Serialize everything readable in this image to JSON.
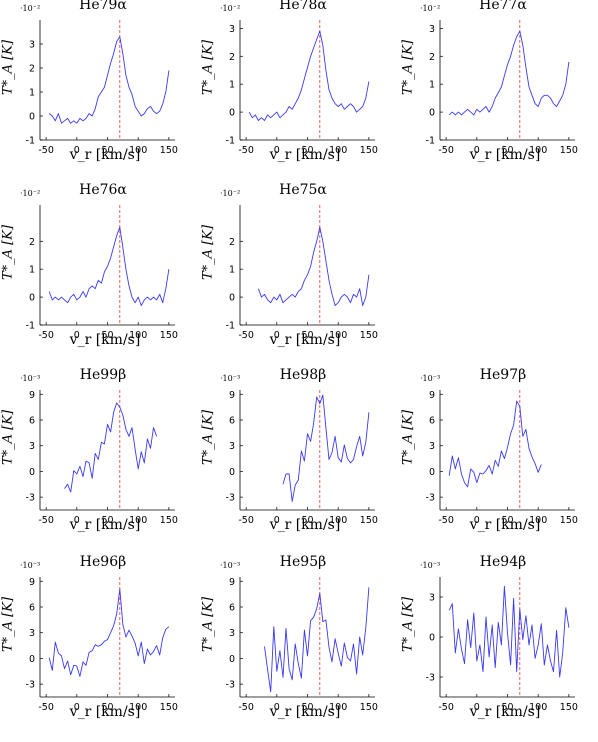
{
  "chart_data": [
    {
      "type": "line",
      "title": "He79α",
      "exponent": "·10⁻²",
      "xlabel": "v_r [km/s]",
      "ylabel": "T*_A [K]",
      "xlim": [
        -60,
        160
      ],
      "ylim": [
        -1,
        4
      ],
      "xticks": [
        -50,
        0,
        50,
        100,
        150
      ],
      "yticks": [
        -1,
        0,
        1,
        2,
        3
      ],
      "marker_x": 70,
      "x": [
        -45,
        -40,
        -35,
        -30,
        -25,
        -20,
        -15,
        -10,
        -5,
        0,
        5,
        10,
        15,
        20,
        25,
        30,
        35,
        40,
        45,
        50,
        55,
        60,
        65,
        70,
        75,
        80,
        85,
        90,
        95,
        100,
        105,
        110,
        115,
        120,
        125,
        130,
        135,
        140,
        145,
        150
      ],
      "y": [
        0.1,
        0.0,
        -0.2,
        0.1,
        -0.3,
        -0.2,
        -0.1,
        -0.3,
        -0.2,
        -0.3,
        -0.1,
        -0.2,
        -0.1,
        0.1,
        0.0,
        0.3,
        0.8,
        1.0,
        1.2,
        1.7,
        2.2,
        2.6,
        3.1,
        3.3,
        2.6,
        1.7,
        1.2,
        0.9,
        0.4,
        0.2,
        0.0,
        0.1,
        0.3,
        0.4,
        0.2,
        0.1,
        0.2,
        0.5,
        1.0,
        1.9
      ]
    },
    {
      "type": "line",
      "title": "He78α",
      "exponent": "·10⁻²",
      "xlabel": "v_r [km/s]",
      "ylabel": "T*_A [K]",
      "xlim": [
        -60,
        160
      ],
      "ylim": [
        -1,
        3.3
      ],
      "xticks": [
        -50,
        0,
        50,
        100,
        150
      ],
      "yticks": [
        -1,
        0,
        1,
        2,
        3
      ],
      "marker_x": 70,
      "x": [
        -45,
        -40,
        -35,
        -30,
        -25,
        -20,
        -15,
        -10,
        -5,
        0,
        5,
        10,
        15,
        20,
        25,
        30,
        35,
        40,
        45,
        50,
        55,
        60,
        65,
        70,
        75,
        80,
        85,
        90,
        95,
        100,
        105,
        110,
        115,
        120,
        125,
        130,
        135,
        140,
        145,
        150
      ],
      "y": [
        0.0,
        -0.2,
        -0.1,
        -0.3,
        -0.2,
        -0.3,
        -0.1,
        -0.2,
        -0.1,
        0.0,
        -0.2,
        -0.1,
        0.0,
        0.2,
        0.1,
        0.3,
        0.5,
        0.8,
        1.2,
        1.6,
        2.0,
        2.3,
        2.6,
        2.9,
        2.4,
        1.5,
        0.8,
        0.5,
        0.3,
        0.2,
        0.3,
        0.1,
        0.2,
        0.3,
        0.2,
        0.0,
        0.1,
        0.2,
        0.5,
        1.1
      ]
    },
    {
      "type": "line",
      "title": "He77α",
      "exponent": "·10⁻²",
      "xlabel": "v_r [km/s]",
      "ylabel": "T*_A [K]",
      "xlim": [
        -60,
        160
      ],
      "ylim": [
        -1,
        3.3
      ],
      "xticks": [
        -50,
        0,
        50,
        100,
        150
      ],
      "yticks": [
        -1,
        0,
        1,
        2,
        3
      ],
      "marker_x": 70,
      "x": [
        -45,
        -40,
        -35,
        -30,
        -25,
        -20,
        -15,
        -10,
        -5,
        0,
        5,
        10,
        15,
        20,
        25,
        30,
        35,
        40,
        45,
        50,
        55,
        60,
        65,
        70,
        75,
        80,
        85,
        90,
        95,
        100,
        105,
        110,
        115,
        120,
        125,
        130,
        135,
        140,
        145,
        150
      ],
      "y": [
        -0.1,
        0.0,
        -0.1,
        0.0,
        -0.1,
        0.0,
        0.1,
        0.0,
        -0.1,
        0.1,
        0.0,
        0.1,
        0.2,
        0.0,
        0.2,
        0.5,
        0.7,
        0.9,
        1.3,
        1.7,
        2.0,
        2.4,
        2.7,
        2.9,
        2.4,
        1.6,
        0.9,
        0.6,
        0.3,
        0.2,
        0.5,
        0.6,
        0.6,
        0.5,
        0.3,
        0.2,
        0.4,
        0.6,
        1.0,
        1.8
      ]
    },
    {
      "type": "line",
      "title": "He76α",
      "exponent": "·10⁻²",
      "xlabel": "v_r [km/s]",
      "ylabel": "T*_A [K]",
      "xlim": [
        -60,
        160
      ],
      "ylim": [
        -1,
        3.3
      ],
      "xticks": [
        -50,
        0,
        50,
        100,
        150
      ],
      "yticks": [
        -1,
        0,
        1,
        2
      ],
      "marker_x": 70,
      "x": [
        -45,
        -40,
        -35,
        -30,
        -25,
        -20,
        -15,
        -10,
        -5,
        0,
        5,
        10,
        15,
        20,
        25,
        30,
        35,
        40,
        45,
        50,
        55,
        60,
        65,
        70,
        75,
        80,
        85,
        90,
        95,
        100,
        105,
        110,
        115,
        120,
        125,
        130,
        135,
        140,
        145,
        150
      ],
      "y": [
        0.2,
        -0.1,
        0.0,
        -0.1,
        0.0,
        -0.1,
        -0.2,
        0.0,
        0.1,
        -0.1,
        0.0,
        0.2,
        0.0,
        0.3,
        0.4,
        0.3,
        0.6,
        0.5,
        0.9,
        1.1,
        1.4,
        1.8,
        2.2,
        2.5,
        1.8,
        1.0,
        0.4,
        0.0,
        -0.2,
        0.0,
        -0.3,
        -0.1,
        0.0,
        -0.1,
        0.0,
        -0.1,
        0.1,
        -0.2,
        0.3,
        1.0
      ]
    },
    {
      "type": "line",
      "title": "He75α",
      "exponent": "·10⁻²",
      "xlabel": "v_r [km/s]",
      "ylabel": "T*_A [K]",
      "xlim": [
        -60,
        160
      ],
      "ylim": [
        -1,
        3.3
      ],
      "xticks": [
        -50,
        0,
        50,
        100,
        150
      ],
      "yticks": [
        -1,
        0,
        1,
        2
      ],
      "marker_x": 70,
      "x": [
        -30,
        -25,
        -20,
        -15,
        -10,
        -5,
        0,
        5,
        10,
        15,
        20,
        25,
        30,
        35,
        40,
        45,
        50,
        55,
        60,
        65,
        70,
        75,
        80,
        85,
        90,
        95,
        100,
        105,
        110,
        115,
        120,
        125,
        130,
        135,
        140,
        145,
        150
      ],
      "y": [
        0.3,
        0.0,
        0.1,
        -0.1,
        -0.2,
        0.0,
        -0.1,
        0.1,
        -0.2,
        -0.1,
        0.0,
        0.1,
        0.0,
        0.2,
        0.3,
        0.6,
        0.8,
        1.1,
        1.6,
        2.0,
        2.5,
        2.0,
        1.3,
        0.6,
        0.1,
        -0.3,
        -0.2,
        0.0,
        0.1,
        0.0,
        -0.2,
        0.1,
        0.0,
        0.3,
        -0.3,
        0.0,
        0.8
      ]
    },
    {
      "type": "line",
      "title": "He99β",
      "exponent": "·10⁻³",
      "xlabel": "v_r [km/s]",
      "ylabel": "T*_A [K]",
      "xlim": [
        -60,
        160
      ],
      "ylim": [
        -4.5,
        9.5
      ],
      "xticks": [
        -50,
        0,
        50,
        100,
        150
      ],
      "yticks": [
        -3,
        0,
        3,
        6,
        9
      ],
      "marker_x": 70,
      "x": [
        -20,
        -15,
        -10,
        -5,
        0,
        5,
        10,
        15,
        20,
        25,
        30,
        35,
        40,
        45,
        50,
        55,
        60,
        65,
        70,
        75,
        80,
        85,
        90,
        95,
        100,
        105,
        110,
        115,
        120,
        125,
        130
      ],
      "y": [
        -2.0,
        -1.5,
        -2.4,
        0.1,
        -0.3,
        0.6,
        -0.6,
        1.2,
        1.0,
        -0.8,
        2.1,
        1.4,
        3.4,
        3.2,
        5.5,
        4.6,
        6.9,
        8.0,
        7.5,
        6.6,
        4.9,
        4.1,
        5.1,
        2.6,
        0.3,
        2.3,
        1.0,
        3.8,
        2.7,
        5.1,
        4.1
      ]
    },
    {
      "type": "line",
      "title": "He98β",
      "exponent": "·10⁻³",
      "xlabel": "v_r [km/s]",
      "ylabel": "T*_A [K]",
      "xlim": [
        -60,
        160
      ],
      "ylim": [
        -4.5,
        9.5
      ],
      "xticks": [
        -50,
        0,
        50,
        100,
        150
      ],
      "yticks": [
        -3,
        0,
        3,
        6,
        9
      ],
      "marker_x": 70,
      "x": [
        10,
        15,
        20,
        25,
        30,
        35,
        40,
        45,
        50,
        55,
        60,
        65,
        70,
        75,
        80,
        85,
        90,
        95,
        100,
        105,
        110,
        115,
        120,
        125,
        130,
        135,
        140,
        145,
        150
      ],
      "y": [
        -1.5,
        -0.3,
        -0.3,
        -3.5,
        -1.6,
        -1.0,
        2.4,
        1.2,
        4.4,
        3.5,
        5.6,
        8.7,
        7.9,
        8.9,
        5.1,
        1.4,
        2.2,
        4.1,
        1.6,
        1.1,
        3.1,
        1.5,
        1.0,
        1.4,
        2.9,
        4.1,
        1.8,
        3.4,
        6.9
      ]
    },
    {
      "type": "line",
      "title": "He97β",
      "exponent": "·10⁻³",
      "xlabel": "v_r [km/s]",
      "ylabel": "T*_A [K]",
      "xlim": [
        -60,
        160
      ],
      "ylim": [
        -4.5,
        9.5
      ],
      "xticks": [
        -50,
        0,
        50,
        100,
        150
      ],
      "yticks": [
        -3,
        0,
        3,
        6,
        9
      ],
      "marker_x": 70,
      "x": [
        -45,
        -40,
        -35,
        -30,
        -25,
        -20,
        -15,
        -10,
        -5,
        0,
        5,
        10,
        15,
        20,
        25,
        30,
        35,
        40,
        45,
        50,
        55,
        60,
        65,
        70,
        75,
        80,
        85,
        90,
        95,
        100,
        105
      ],
      "y": [
        -0.5,
        1.8,
        0.3,
        1.6,
        -0.3,
        -1.3,
        -1.8,
        0.3,
        -0.1,
        -1.3,
        -0.2,
        -0.3,
        0.1,
        0.7,
        -0.3,
        1.3,
        0.6,
        2.4,
        1.5,
        2.8,
        4.4,
        5.4,
        8.2,
        7.6,
        4.1,
        4.9,
        2.7,
        1.7,
        0.9,
        -0.1,
        0.8
      ]
    },
    {
      "type": "line",
      "title": "He96β",
      "exponent": "·10⁻³",
      "xlabel": "v_r [km/s]",
      "ylabel": "T*_A [K]",
      "xlim": [
        -60,
        160
      ],
      "ylim": [
        -4.5,
        9.5
      ],
      "xticks": [
        -50,
        0,
        50,
        100,
        150
      ],
      "yticks": [
        -3,
        0,
        3,
        6,
        9
      ],
      "marker_x": 70,
      "x": [
        -45,
        -40,
        -35,
        -30,
        -25,
        -20,
        -15,
        -10,
        -5,
        0,
        5,
        10,
        15,
        20,
        25,
        30,
        35,
        40,
        45,
        50,
        55,
        60,
        65,
        70,
        75,
        80,
        85,
        90,
        95,
        100,
        105,
        110,
        115,
        120,
        125,
        130,
        135,
        140,
        145,
        150
      ],
      "y": [
        0.1,
        -1.4,
        1.9,
        0.6,
        0.3,
        -1.2,
        -0.3,
        -1.9,
        -0.8,
        -0.9,
        -2.1,
        -0.4,
        -0.8,
        0.7,
        0.9,
        1.6,
        1.4,
        1.6,
        2.0,
        2.2,
        3.0,
        3.8,
        5.2,
        8.1,
        4.0,
        2.5,
        3.3,
        2.6,
        1.8,
        0.3,
        1.9,
        -0.6,
        1.1,
        0.4,
        0.8,
        1.5,
        0.4,
        2.4,
        3.4,
        3.7
      ]
    },
    {
      "type": "line",
      "title": "He95β",
      "exponent": "·10⁻³",
      "xlabel": "v_r [km/s]",
      "ylabel": "T*_A [K]",
      "xlim": [
        -60,
        160
      ],
      "ylim": [
        -4.5,
        9.5
      ],
      "xticks": [
        -50,
        0,
        50,
        100,
        150
      ],
      "yticks": [
        -3,
        0,
        3,
        6,
        9
      ],
      "marker_x": 70,
      "x": [
        -20,
        -15,
        -10,
        -5,
        0,
        5,
        10,
        15,
        20,
        25,
        30,
        35,
        40,
        45,
        50,
        55,
        60,
        65,
        70,
        75,
        80,
        85,
        90,
        95,
        100,
        105,
        110,
        115,
        120,
        125,
        130,
        135,
        140,
        145,
        150
      ],
      "y": [
        1.4,
        -1.3,
        -3.9,
        3.7,
        -1.5,
        0.9,
        -2.2,
        3.5,
        -1.2,
        -2.5,
        1.7,
        -0.6,
        -2.3,
        3.3,
        0.3,
        4.4,
        4.8,
        5.8,
        7.6,
        4.3,
        4.5,
        1.3,
        -0.4,
        2.3,
        0.6,
        -0.9,
        1.8,
        0.1,
        -0.3,
        1.7,
        -1.8,
        2.5,
        0.4,
        3.6,
        8.3
      ]
    },
    {
      "type": "line",
      "title": "He94β",
      "exponent": "·10⁻³",
      "xlabel": "v_r [km/s]",
      "ylabel": "T*_A [K]",
      "xlim": [
        -60,
        160
      ],
      "ylim": [
        -4.5,
        4.5
      ],
      "xticks": [
        -50,
        0,
        50,
        100,
        150
      ],
      "yticks": [
        -3,
        0,
        3
      ],
      "marker_x": 70,
      "x": [
        -45,
        -40,
        -35,
        -30,
        -25,
        -20,
        -15,
        -10,
        -5,
        0,
        5,
        10,
        15,
        20,
        25,
        30,
        35,
        40,
        45,
        50,
        55,
        60,
        65,
        70,
        75,
        80,
        85,
        90,
        95,
        100,
        105,
        110,
        115,
        120,
        125,
        130,
        135,
        140,
        145,
        150
      ],
      "y": [
        2.0,
        2.5,
        -1.2,
        0.6,
        -0.9,
        -2.0,
        1.3,
        -0.8,
        1.8,
        -1.8,
        -0.6,
        -2.6,
        1.5,
        -1.5,
        0.9,
        -2.3,
        1.1,
        -0.6,
        3.8,
        0.3,
        -2.1,
        2.9,
        -2.6,
        2.1,
        -0.2,
        1.6,
        -0.6,
        0.9,
        -1.6,
        -0.6,
        1.0,
        -2.1,
        -0.6,
        -1.8,
        -2.6,
        0.5,
        -3.0,
        -1.2,
        2.2,
        0.7
      ]
    }
  ]
}
